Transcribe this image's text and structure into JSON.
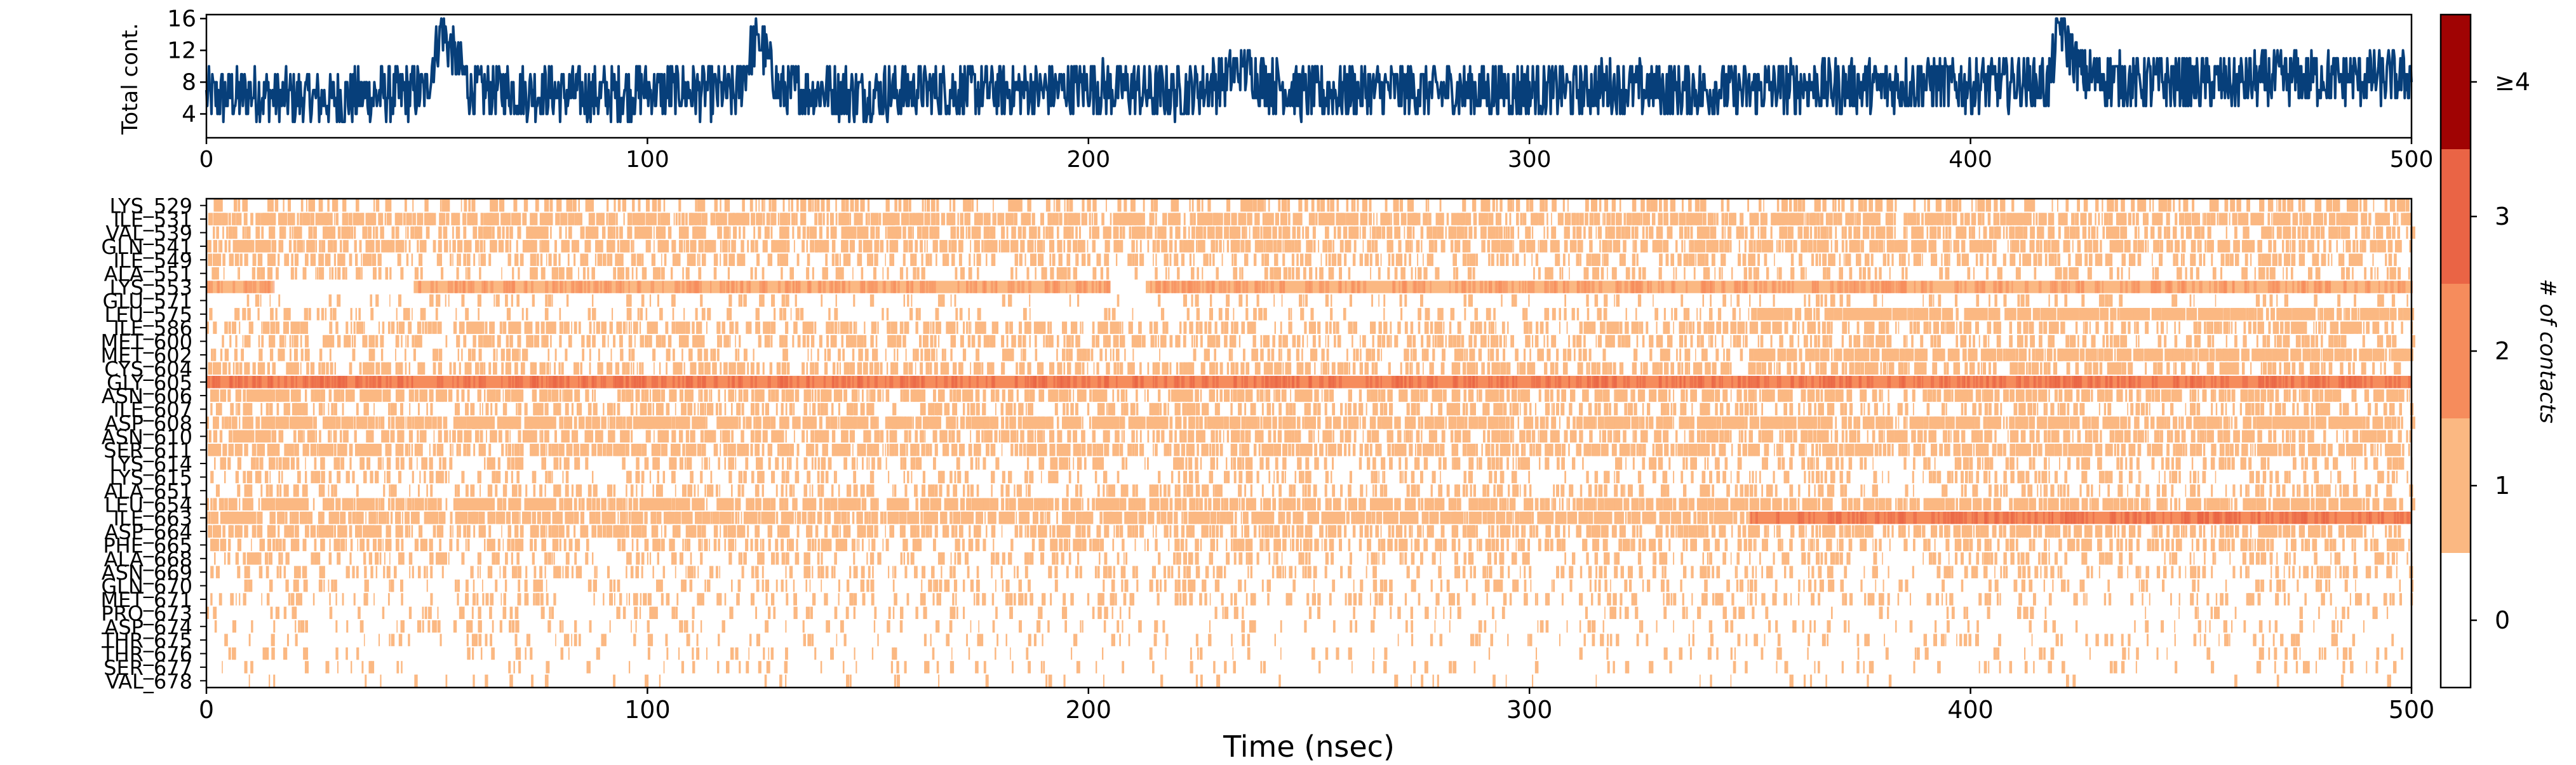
{
  "chart_data": [
    {
      "type": "line",
      "title": "",
      "xlabel": "",
      "ylabel": "Total cont.",
      "xlim": [
        0,
        500
      ],
      "ylim": [
        1,
        16.5
      ],
      "xticks": [
        0,
        100,
        200,
        300,
        400,
        500
      ],
      "yticks": [
        4,
        8,
        12,
        16
      ],
      "series_color": "#073f7a",
      "series": [
        {
          "x": [
            0,
            10,
            20,
            30,
            40,
            50,
            53,
            60,
            70,
            80,
            90,
            100,
            110,
            120,
            125,
            130,
            140,
            150,
            160,
            170,
            180,
            190,
            200,
            210,
            220,
            230,
            235,
            240,
            250,
            260,
            270,
            280,
            290,
            300,
            310,
            320,
            330,
            340,
            350,
            360,
            370,
            380,
            392,
            400,
            410,
            418,
            420,
            425,
            430,
            440,
            450,
            460,
            470,
            480,
            490,
            500
          ],
          "y": [
            6,
            6.5,
            6,
            6,
            6.5,
            7,
            15,
            7,
            7,
            6.5,
            6.5,
            7,
            7,
            6.5,
            14,
            7,
            7,
            6.5,
            7,
            7,
            7,
            7,
            7.5,
            7,
            6.5,
            8,
            10,
            8,
            6.5,
            7,
            7,
            7,
            7,
            7,
            7,
            7.5,
            7,
            7,
            7,
            7.5,
            7.5,
            7.5,
            8,
            7.5,
            8,
            8,
            15.5,
            9,
            8.5,
            8,
            8,
            8,
            8.5,
            8.5,
            8.5,
            8.5
          ]
        }
      ]
    },
    {
      "type": "heatmap",
      "title": "",
      "xlabel": "Time (nsec)",
      "ylabel": "",
      "xlim": [
        0,
        500
      ],
      "xticks": [
        0,
        100,
        200,
        300,
        400,
        500
      ],
      "rows": [
        "LYS_529",
        "ILE_531",
        "VAL_539",
        "GLN_541",
        "ILE_549",
        "ALA_551",
        "LYS_553",
        "GLU_571",
        "LEU_575",
        "ILE_586",
        "MET_600",
        "MET_602",
        "CYS_604",
        "GLY_605",
        "ASN_606",
        "ILE_607",
        "ASP_608",
        "ASN_610",
        "SER_611",
        "LYS_614",
        "LYS_615",
        "ALA_651",
        "LEU_654",
        "ILE_663",
        "ASP_664",
        "PHE_665",
        "ALA_668",
        "ASN_669",
        "GLN_670",
        "MET_671",
        "PRO_673",
        "ASP_674",
        "THR_675",
        "THR_676",
        "SER_677",
        "VAL_678"
      ],
      "value_levels": [
        0,
        1,
        2,
        3,
        4
      ],
      "segments": [
        {
          "row": "LYS_529",
          "start": 0,
          "end": 500,
          "level": 1,
          "density": 0.18
        },
        {
          "row": "ILE_531",
          "start": 0,
          "end": 500,
          "level": 1,
          "density": 0.45
        },
        {
          "row": "VAL_539",
          "start": 0,
          "end": 500,
          "level": 1,
          "density": 0.3
        },
        {
          "row": "GLN_541",
          "start": 0,
          "end": 500,
          "level": 1,
          "density": 0.35
        },
        {
          "row": "ILE_549",
          "start": 0,
          "end": 500,
          "level": 1,
          "density": 0.2
        },
        {
          "row": "ALA_551",
          "start": 0,
          "end": 500,
          "level": 1,
          "density": 0.12
        },
        {
          "row": "LYS_553",
          "start": 0,
          "end": 15,
          "level": 1,
          "density": 0.9
        },
        {
          "row": "LYS_553",
          "start": 47,
          "end": 205,
          "level": 1,
          "density": 0.95
        },
        {
          "row": "LYS_553",
          "start": 213,
          "end": 500,
          "level": 1,
          "density": 1.0
        },
        {
          "row": "GLU_571",
          "start": 0,
          "end": 500,
          "level": 1,
          "density": 0.06
        },
        {
          "row": "LEU_575",
          "start": 0,
          "end": 350,
          "level": 1,
          "density": 0.08
        },
        {
          "row": "LEU_575",
          "start": 350,
          "end": 500,
          "level": 1,
          "density": 0.7
        },
        {
          "row": "ILE_586",
          "start": 0,
          "end": 500,
          "level": 1,
          "density": 0.25
        },
        {
          "row": "MET_600",
          "start": 0,
          "end": 500,
          "level": 1,
          "density": 0.2
        },
        {
          "row": "MET_602",
          "start": 0,
          "end": 350,
          "level": 1,
          "density": 0.12
        },
        {
          "row": "MET_602",
          "start": 350,
          "end": 500,
          "level": 1,
          "density": 0.7
        },
        {
          "row": "CYS_604",
          "start": 0,
          "end": 500,
          "level": 1,
          "density": 0.25
        },
        {
          "row": "GLY_605",
          "start": 0,
          "end": 500,
          "level": 2,
          "density": 1.0
        },
        {
          "row": "ASN_606",
          "start": 0,
          "end": 500,
          "level": 1,
          "density": 0.35
        },
        {
          "row": "ILE_607",
          "start": 0,
          "end": 500,
          "level": 1,
          "density": 0.2
        },
        {
          "row": "ASP_608",
          "start": 0,
          "end": 500,
          "level": 1,
          "density": 0.55
        },
        {
          "row": "ASN_610",
          "start": 0,
          "end": 500,
          "level": 1,
          "density": 0.3
        },
        {
          "row": "SER_611",
          "start": 0,
          "end": 500,
          "level": 1,
          "density": 0.4
        },
        {
          "row": "LYS_614",
          "start": 0,
          "end": 500,
          "level": 1,
          "density": 0.15
        },
        {
          "row": "LYS_615",
          "start": 0,
          "end": 500,
          "level": 1,
          "density": 0.12
        },
        {
          "row": "ALA_651",
          "start": 0,
          "end": 500,
          "level": 1,
          "density": 0.15
        },
        {
          "row": "LEU_654",
          "start": 0,
          "end": 500,
          "level": 1,
          "density": 0.5
        },
        {
          "row": "ILE_663",
          "start": 0,
          "end": 350,
          "level": 1,
          "density": 0.55
        },
        {
          "row": "ILE_663",
          "start": 350,
          "end": 500,
          "level": 2,
          "density": 0.95
        },
        {
          "row": "ASP_664",
          "start": 0,
          "end": 500,
          "level": 1,
          "density": 0.3
        },
        {
          "row": "PHE_665",
          "start": 0,
          "end": 500,
          "level": 1,
          "density": 0.2
        },
        {
          "row": "ALA_668",
          "start": 0,
          "end": 500,
          "level": 1,
          "density": 0.12
        },
        {
          "row": "ASN_669",
          "start": 0,
          "end": 500,
          "level": 1,
          "density": 0.12
        },
        {
          "row": "GLN_670",
          "start": 0,
          "end": 500,
          "level": 1,
          "density": 0.08
        },
        {
          "row": "MET_671",
          "start": 0,
          "end": 500,
          "level": 1,
          "density": 0.1
        },
        {
          "row": "PRO_673",
          "start": 0,
          "end": 500,
          "level": 1,
          "density": 0.05
        },
        {
          "row": "ASP_674",
          "start": 0,
          "end": 500,
          "level": 1,
          "density": 0.05
        },
        {
          "row": "THR_675",
          "start": 0,
          "end": 500,
          "level": 1,
          "density": 0.05
        },
        {
          "row": "THR_676",
          "start": 0,
          "end": 500,
          "level": 1,
          "density": 0.04
        },
        {
          "row": "SER_677",
          "start": 0,
          "end": 500,
          "level": 1,
          "density": 0.04
        },
        {
          "row": "VAL_678",
          "start": 0,
          "end": 500,
          "level": 1,
          "density": 0.02
        }
      ],
      "colorbar": {
        "label": "# of contacts",
        "tick_labels": [
          "0",
          "1",
          "2",
          "3",
          "≥4"
        ],
        "colors": [
          "#ffffff",
          "#fbb882",
          "#f68c5c",
          "#ea6445",
          "#a00303"
        ]
      }
    }
  ]
}
